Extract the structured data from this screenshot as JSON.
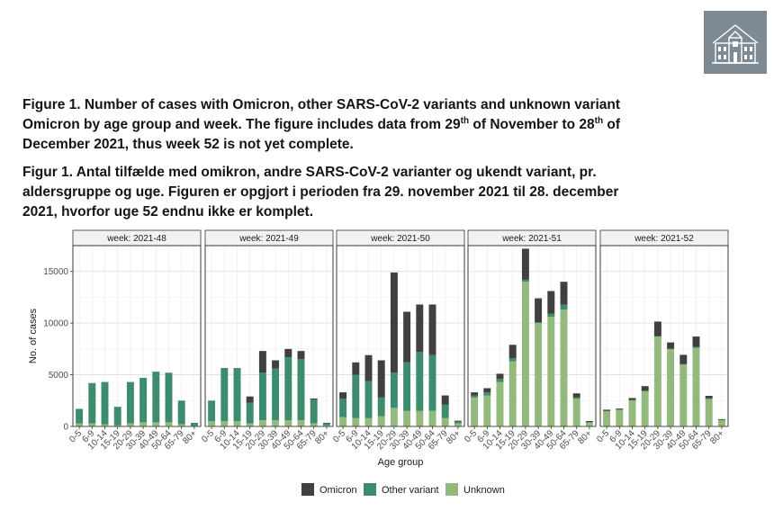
{
  "caption_en": {
    "line1": "Figure 1. Number of cases with Omicron, other SARS-CoV-2 variants and unknown variant",
    "line2a": "Omicron by age group and week. The figure includes data from 29",
    "sup1": "th",
    "line2b": " of November to 28",
    "sup2": "th",
    "line2c": " of",
    "line3": "December 2021, thus week 52 is not yet complete."
  },
  "caption_da": {
    "line1": "Figur 1. Antal tilfælde med omikron, andre SARS-CoV-2 varianter og ukendt variant, pr.",
    "line2": "aldersgruppe og uge. Figuren er opgjort i perioden fra 29. november 2021 til 28. december",
    "line3": "2021, hvorfor uge 52 endnu ikke er komplet."
  },
  "logo": {
    "icon": "building-icon",
    "color": "#7d8a94"
  },
  "chart_data": {
    "type": "bar",
    "stacked": true,
    "facets": [
      "week: 2021-48",
      "week: 2021-49",
      "week: 2021-50",
      "week: 2021-51",
      "week: 2021-52"
    ],
    "categories": [
      "0-5",
      "6-9",
      "10-14",
      "15-19",
      "20-29",
      "30-39",
      "40-49",
      "50-64",
      "65-79",
      "80+"
    ],
    "xlabel": "Age group",
    "ylabel": "No. of cases",
    "ylim": [
      0,
      17500
    ],
    "yticks": [
      0,
      5000,
      10000,
      15000
    ],
    "grid": true,
    "legend_position": "bottom",
    "colors": {
      "Omicron": "#404040",
      "Other variant": "#3d8c6e",
      "Unknown": "#93b97c"
    },
    "series": [
      {
        "name": "Unknown",
        "values": [
          [
            300,
            300,
            200,
            100,
            300,
            400,
            400,
            400,
            200,
            50
          ],
          [
            500,
            500,
            500,
            300,
            600,
            600,
            600,
            600,
            300,
            100
          ],
          [
            900,
            800,
            800,
            1000,
            1800,
            1500,
            1500,
            1500,
            800,
            300
          ],
          [
            2800,
            3000,
            4300,
            6300,
            14000,
            10000,
            10600,
            11300,
            2700,
            400
          ],
          [
            1500,
            1600,
            2500,
            3400,
            8700,
            7500,
            6000,
            7600,
            2700,
            650
          ]
        ]
      },
      {
        "name": "Other variant",
        "values": [
          [
            1400,
            3900,
            4100,
            1800,
            4000,
            4300,
            4900,
            4800,
            2300,
            300
          ],
          [
            2000,
            5100,
            5100,
            2000,
            4600,
            5000,
            6100,
            5900,
            2300,
            200
          ],
          [
            1800,
            4200,
            3600,
            1800,
            3400,
            4700,
            5700,
            5400,
            1300,
            150
          ],
          [
            200,
            300,
            300,
            300,
            200,
            100,
            300,
            500,
            100,
            20
          ],
          [
            20,
            30,
            50,
            50,
            50,
            30,
            30,
            100,
            10,
            5
          ]
        ]
      },
      {
        "name": "Omicron",
        "values": [
          [
            0,
            0,
            0,
            0,
            0,
            0,
            0,
            0,
            0,
            0
          ],
          [
            0,
            50,
            50,
            600,
            2100,
            800,
            800,
            800,
            100,
            50
          ],
          [
            600,
            1200,
            2500,
            3600,
            9700,
            4900,
            4600,
            4900,
            900,
            100
          ],
          [
            300,
            400,
            500,
            1300,
            3000,
            2300,
            2200,
            2200,
            400,
            100
          ],
          [
            100,
            100,
            200,
            450,
            1400,
            600,
            900,
            1000,
            250,
            50
          ]
        ]
      }
    ]
  }
}
